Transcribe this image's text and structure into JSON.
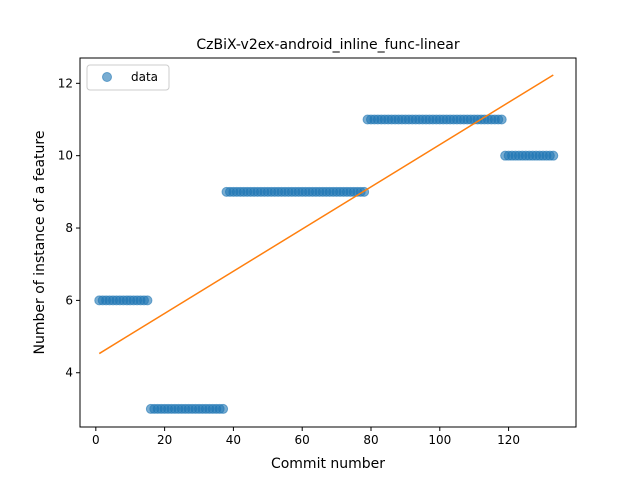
{
  "chart_data": {
    "type": "scatter",
    "title": "CzBiX-v2ex-android_inline_func-linear",
    "xlabel": "Commit number",
    "ylabel": "Number of instance of a feature",
    "xlim": [
      -4.6,
      139.6
    ],
    "ylim": [
      2.5,
      12.7
    ],
    "xticks": [
      0,
      20,
      40,
      60,
      80,
      100,
      120
    ],
    "yticks": [
      4,
      6,
      8,
      10,
      12
    ],
    "grid": false,
    "legend": {
      "position": "top-left",
      "entries": [
        "data"
      ]
    },
    "colors": {
      "data": "#1f77b4",
      "fit": "#ff7f0e"
    },
    "series": [
      {
        "name": "data",
        "kind": "scatter",
        "segments": [
          {
            "x_start": 1,
            "x_end": 15,
            "y": 6
          },
          {
            "x_start": 16,
            "x_end": 37,
            "y": 3
          },
          {
            "x_start": 38,
            "x_end": 78,
            "y": 9
          },
          {
            "x_start": 79,
            "x_end": 118,
            "y": 11
          },
          {
            "x_start": 119,
            "x_end": 133,
            "y": 10
          }
        ]
      },
      {
        "kind": "line",
        "x": [
          1,
          133
        ],
        "y": [
          4.53,
          12.23
        ]
      }
    ]
  }
}
